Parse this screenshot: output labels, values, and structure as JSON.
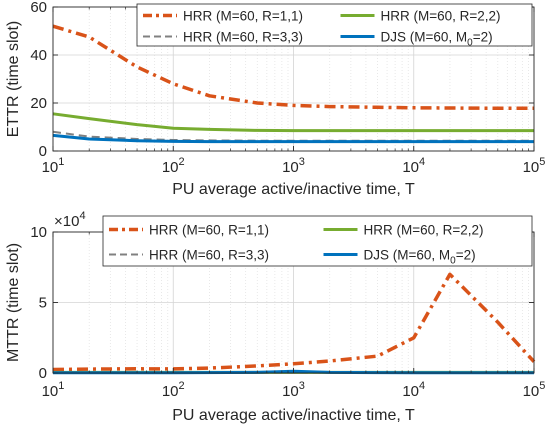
{
  "colors": {
    "hrr_r1": "#d95319",
    "hrr_r2": "#77ac30",
    "hrr_r3": "#808080",
    "djs": "#0072bd",
    "axis": "#262626",
    "grid": "#d9d9d9"
  },
  "chart_data": [
    {
      "type": "line",
      "xscale": "log",
      "xlim": [
        10,
        100000
      ],
      "ylim": [
        0,
        60
      ],
      "xlabel": "PU average active/inactive time, T",
      "ylabel": "ETTR (time slot)",
      "x_tick_labels": [
        {
          "base": "10",
          "exp": "1"
        },
        {
          "base": "10",
          "exp": "2"
        },
        {
          "base": "10",
          "exp": "3"
        },
        {
          "base": "10",
          "exp": "4"
        },
        {
          "base": "10",
          "exp": "5"
        }
      ],
      "y_tick_labels": [
        "0",
        "20",
        "40",
        "60"
      ],
      "grid": true,
      "legend_placement": "top-right",
      "series": [
        {
          "name": "HRR (M=60, R=1,1)",
          "style": "dash-dot",
          "color": "#d95319",
          "x": [
            10,
            20,
            50,
            100,
            200,
            500,
            1000,
            2000,
            5000,
            10000,
            20000,
            50000,
            100000
          ],
          "y": [
            52,
            47.5,
            35,
            28,
            23,
            20,
            19,
            18.5,
            18.2,
            18,
            17.9,
            17.8,
            17.8
          ]
        },
        {
          "name": "HRR (M=60, R=2,2)",
          "style": "solid",
          "color": "#77ac30",
          "x": [
            10,
            20,
            50,
            100,
            200,
            500,
            1000,
            2000,
            5000,
            10000,
            20000,
            50000,
            100000
          ],
          "y": [
            15.5,
            13.5,
            11,
            9.5,
            9,
            8.6,
            8.5,
            8.5,
            8.5,
            8.5,
            8.5,
            8.5,
            8.5
          ]
        },
        {
          "name": "HRR (M=60, R=3,3)",
          "style": "dashed",
          "color": "#808080",
          "x": [
            10,
            20,
            50,
            100,
            200,
            500,
            1000,
            2000,
            5000,
            10000,
            20000,
            50000,
            100000
          ],
          "y": [
            8,
            6,
            5,
            4.6,
            4.4,
            4.3,
            4.3,
            4.3,
            4.3,
            4.3,
            4.3,
            4.3,
            4.3
          ]
        },
        {
          "name": "DJS (M=60, M",
          "name_sub": "0",
          "name_tail": "=2)",
          "style": "solid",
          "color": "#0072bd",
          "x": [
            10,
            20,
            50,
            100,
            200,
            500,
            1000,
            2000,
            5000,
            10000,
            20000,
            50000,
            100000
          ],
          "y": [
            6.5,
            5,
            4.3,
            4,
            3.9,
            3.9,
            3.9,
            3.9,
            3.9,
            3.9,
            3.9,
            3.9,
            3.9
          ]
        }
      ]
    },
    {
      "type": "line",
      "xscale": "log",
      "xlim": [
        10,
        100000
      ],
      "ylim": [
        0,
        100000
      ],
      "y_multiplier": {
        "base": "×10",
        "exp": "4"
      },
      "xlabel": "PU average active/inactive time, T",
      "ylabel": "MTTR (time slot)",
      "x_tick_labels": [
        {
          "base": "10",
          "exp": "1"
        },
        {
          "base": "10",
          "exp": "2"
        },
        {
          "base": "10",
          "exp": "3"
        },
        {
          "base": "10",
          "exp": "4"
        },
        {
          "base": "10",
          "exp": "5"
        }
      ],
      "y_tick_labels": [
        "0",
        "5",
        "10"
      ],
      "grid": true,
      "legend_placement": "top",
      "series": [
        {
          "name": "HRR (M=60, R=1,1)",
          "style": "dash-dot",
          "color": "#d95319",
          "x": [
            10,
            20,
            50,
            100,
            200,
            500,
            1000,
            2000,
            5000,
            10000,
            20000,
            50000,
            100000
          ],
          "y": [
            2500,
            2800,
            3000,
            2900,
            3500,
            5000,
            6500,
            8500,
            12000,
            25000,
            70000,
            36000,
            8000
          ]
        },
        {
          "name": "HRR (M=60, R=2,2)",
          "style": "solid",
          "color": "#77ac30",
          "x": [
            10,
            100,
            1000,
            10000,
            100000
          ],
          "y": [
            400,
            400,
            400,
            400,
            400
          ]
        },
        {
          "name": "HRR (M=60, R=3,3)",
          "style": "dashed",
          "color": "#808080",
          "x": [
            10,
            100,
            1000,
            10000,
            100000
          ],
          "y": [
            300,
            300,
            300,
            300,
            300
          ]
        },
        {
          "name": "DJS (M=60, M",
          "name_sub": "0",
          "name_tail": "=2)",
          "style": "solid",
          "color": "#0072bd",
          "x": [
            10,
            100,
            500,
            1000,
            2000,
            5000,
            10000,
            100000
          ],
          "y": [
            200,
            200,
            400,
            1200,
            400,
            250,
            200,
            200
          ]
        }
      ]
    }
  ]
}
